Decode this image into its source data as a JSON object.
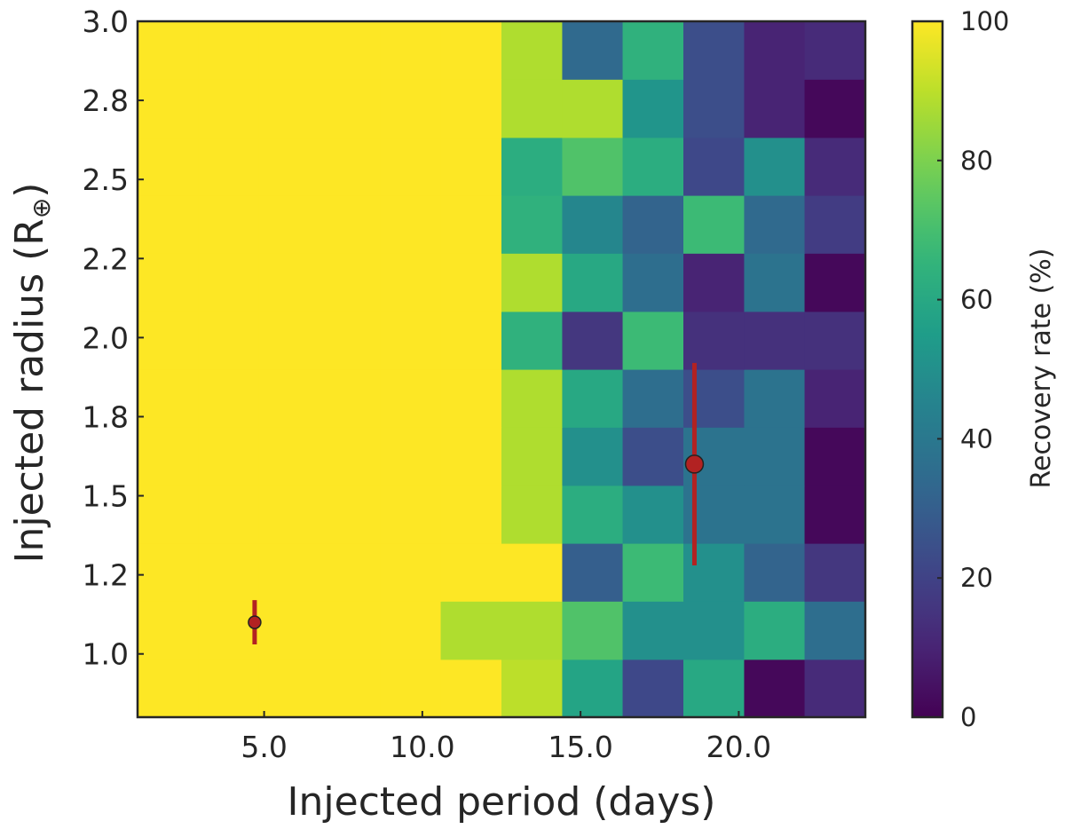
{
  "chart_data": {
    "type": "heatmap",
    "xlabel": "Injected period (days)",
    "ylabel": "Injected radius (R",
    "ylabel_symbol": "⊕",
    "ylabel_close": ")",
    "xlim": [
      1.0,
      24.0
    ],
    "ylim": [
      0.8,
      3.0
    ],
    "x_ticks": [
      5.0,
      10.0,
      15.0,
      20.0
    ],
    "x_tick_labels": [
      "5.0",
      "10.0",
      "15.0",
      "20.0"
    ],
    "y_ticks": [
      1.0,
      1.25,
      1.5,
      1.75,
      2.0,
      2.25,
      2.5,
      2.75,
      3.0
    ],
    "y_tick_labels": [
      "1.0",
      "1.2",
      "1.5",
      "1.8",
      "2.0",
      "2.2",
      "2.5",
      "2.8",
      "3.0"
    ],
    "x_edges": [
      1.0,
      2.92,
      4.83,
      6.75,
      8.67,
      10.58,
      12.5,
      14.42,
      16.33,
      18.25,
      20.17,
      22.08,
      24.0
    ],
    "y_edges": [
      0.8,
      0.983,
      1.167,
      1.35,
      1.533,
      1.717,
      1.9,
      2.083,
      2.267,
      2.45,
      2.633,
      2.817,
      3.0
    ],
    "z_bottom_to_top": [
      [
        100,
        100,
        100,
        100,
        100,
        100,
        90,
        58,
        22,
        60,
        2,
        12
      ],
      [
        100,
        100,
        100,
        100,
        100,
        88,
        88,
        72,
        50,
        50,
        62,
        36
      ],
      [
        100,
        100,
        100,
        100,
        100,
        100,
        100,
        30,
        68,
        50,
        32,
        16
      ],
      [
        100,
        100,
        100,
        100,
        100,
        100,
        88,
        62,
        50,
        38,
        38,
        2
      ],
      [
        100,
        100,
        100,
        100,
        100,
        100,
        88,
        50,
        24,
        38,
        38,
        2
      ],
      [
        100,
        100,
        100,
        100,
        100,
        100,
        88,
        60,
        36,
        24,
        38,
        10
      ],
      [
        100,
        100,
        100,
        100,
        100,
        100,
        64,
        16,
        68,
        14,
        14,
        14
      ],
      [
        100,
        100,
        100,
        100,
        100,
        100,
        88,
        60,
        36,
        10,
        38,
        2
      ],
      [
        100,
        100,
        100,
        100,
        100,
        100,
        64,
        46,
        32,
        68,
        34,
        18
      ],
      [
        100,
        100,
        100,
        100,
        100,
        100,
        62,
        72,
        62,
        22,
        50,
        12
      ],
      [
        100,
        100,
        100,
        100,
        100,
        100,
        88,
        88,
        52,
        24,
        10,
        2
      ],
      [
        100,
        100,
        100,
        100,
        100,
        100,
        88,
        34,
        64,
        24,
        10,
        12
      ]
    ],
    "points": [
      {
        "x": 4.7,
        "y": 1.1,
        "yerr_low": 0.07,
        "yerr_high": 0.07,
        "size": "small"
      },
      {
        "x": 18.6,
        "y": 1.6,
        "yerr_low": 0.32,
        "yerr_high": 0.32,
        "size": "large"
      }
    ],
    "point_color": "#b22222",
    "errorbar_color": "#b22222",
    "colorbar": {
      "label": "Recovery rate (%)",
      "range": [
        0,
        100
      ],
      "ticks": [
        0,
        20,
        40,
        60,
        80,
        100
      ],
      "tick_labels": [
        "0",
        "20",
        "40",
        "60",
        "80",
        "100"
      ],
      "colormap": "viridis"
    },
    "grid": false
  }
}
